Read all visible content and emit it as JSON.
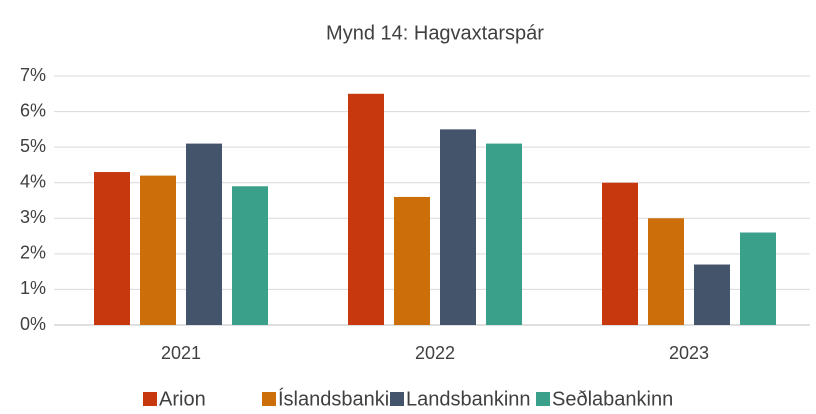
{
  "chart_data": {
    "type": "bar",
    "title": "Mynd 14: Hagvaxtarspár",
    "categories": [
      "2021",
      "2022",
      "2023"
    ],
    "series": [
      {
        "name": "Arion",
        "color": "#c8380e",
        "values": [
          4.3,
          6.5,
          4.0
        ]
      },
      {
        "name": "Íslandsbanki",
        "color": "#cc6e0a",
        "values": [
          4.2,
          3.6,
          3.0
        ]
      },
      {
        "name": "Landsbankinn",
        "color": "#44546a",
        "values": [
          5.1,
          5.5,
          1.7
        ]
      },
      {
        "name": "Seðlabankinn",
        "color": "#3aa08a",
        "values": [
          3.9,
          5.1,
          2.6
        ]
      }
    ],
    "ylim": [
      0,
      7
    ],
    "yticks": [
      {
        "value": 0,
        "label": "0%"
      },
      {
        "value": 1,
        "label": "1%"
      },
      {
        "value": 2,
        "label": "2%"
      },
      {
        "value": 3,
        "label": "3%"
      },
      {
        "value": 4,
        "label": "4%"
      },
      {
        "value": 5,
        "label": "5%"
      },
      {
        "value": 6,
        "label": "6%"
      },
      {
        "value": 7,
        "label": "7%"
      }
    ],
    "grid": true,
    "legend": "bottom"
  }
}
